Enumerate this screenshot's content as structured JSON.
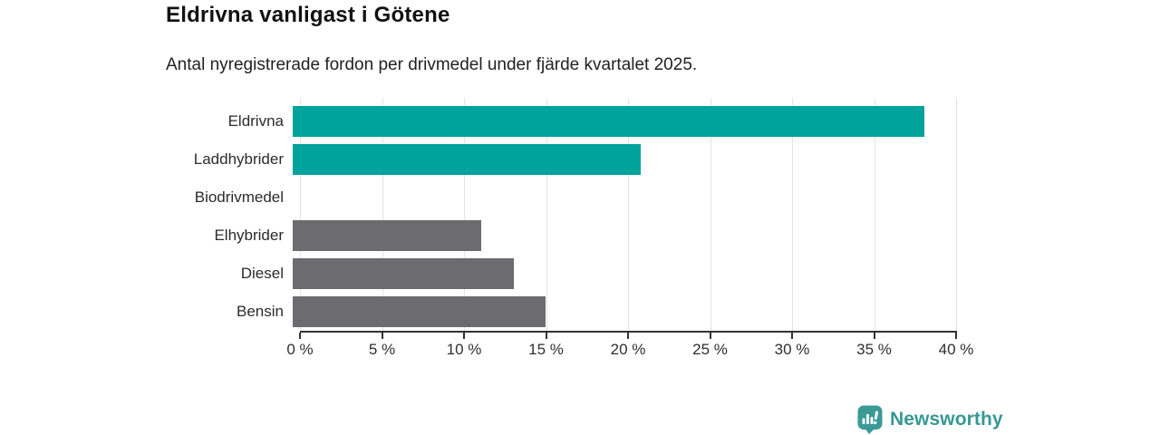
{
  "header": {
    "title": "Eldrivna vanligast i Götene",
    "subtitle": "Antal nyregistrerade fordon per drivmedel under fjärde kvartalet 2025."
  },
  "chart_data": {
    "type": "bar",
    "orientation": "horizontal",
    "title": "Eldrivna vanligast i Götene",
    "subtitle": "Antal nyregistrerade fordon per drivmedel under fjärde kvartalet 2025.",
    "categories": [
      "Eldrivna",
      "Laddhybrider",
      "Biodrivmedel",
      "Elhybrider",
      "Diesel",
      "Bensin"
    ],
    "values": [
      38.5,
      21.2,
      0,
      11.5,
      13.5,
      15.4
    ],
    "unit": "%",
    "bar_colors": [
      "#00a39b",
      "#00a39b",
      "#6b6b70",
      "#6b6b70",
      "#6b6b70",
      "#6b6b70"
    ],
    "highlight_color": "#00a39b",
    "default_color": "#6b6b70",
    "xlabel": "",
    "ylabel": "",
    "xlim": [
      0,
      40
    ],
    "x_ticks": [
      0,
      5,
      10,
      15,
      20,
      25,
      30,
      35,
      40
    ],
    "x_tick_labels": [
      "0 %",
      "5 %",
      "10 %",
      "15 %",
      "20 %",
      "25 %",
      "30 %",
      "35 %",
      "40 %"
    ],
    "grid": "vertical-gridlines",
    "legend": "none"
  },
  "footer": {
    "brand": "Newsworthy",
    "brand_color": "#369894",
    "logo_color": "#3a9a96",
    "logo_icon": "bar-chart-speech-bubble-icon"
  }
}
